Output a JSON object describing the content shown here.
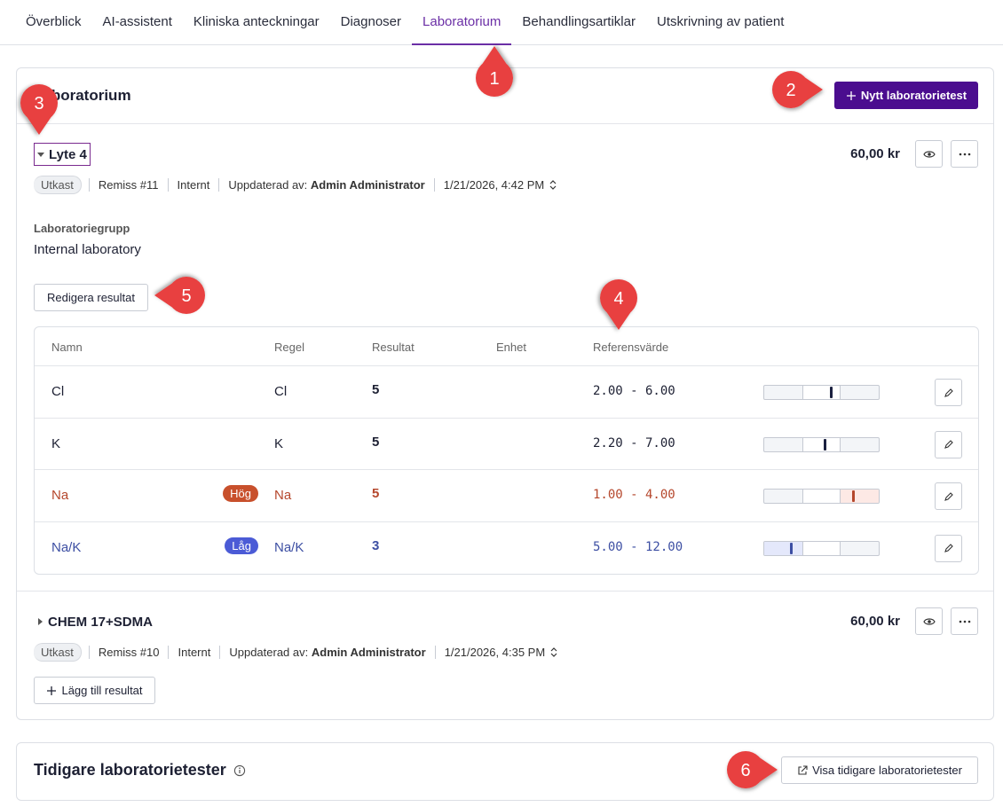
{
  "tabs": [
    "Överblick",
    "AI-assistent",
    "Kliniska anteckningar",
    "Diagnoser",
    "Laboratorium",
    "Behandlingsartiklar",
    "Utskrivning av patient"
  ],
  "panel": {
    "title": "Laboratorium",
    "new_button": "Nytt laboratorietest"
  },
  "tests": [
    {
      "name": "Lyte 4",
      "price": "60,00 kr",
      "status": "Utkast",
      "remiss": "Remiss #11",
      "source": "Internt",
      "updated_label": "Uppdaterad av:",
      "updated_by": "Admin Administrator",
      "date": "1/21/2026, 4:42 PM",
      "group_label": "Laboratoriegrupp",
      "group": "Internal laboratory",
      "action_button": "Redigera resultat",
      "table": {
        "headers": [
          "Namn",
          "Regel",
          "Resultat",
          "Enhet",
          "Referensvärde"
        ],
        "rows": [
          {
            "name": "Cl",
            "rule": "Cl",
            "result": 5,
            "reference": "2.00 - 6.00"
          },
          {
            "name": "K",
            "rule": "K",
            "result": 5,
            "reference": "2.20 - 7.00"
          },
          {
            "name": "Na",
            "flag": "Hög",
            "rule": "Na",
            "result": 5,
            "reference": "1.00 - 4.00"
          },
          {
            "name": "Na/K",
            "flag": "Låg",
            "rule": "Na/K",
            "result": 3,
            "reference": "5.00 - 12.00"
          }
        ]
      }
    },
    {
      "name": "CHEM 17+SDMA",
      "price": "60,00 kr",
      "status": "Utkast",
      "remiss": "Remiss #10",
      "source": "Internt",
      "updated_label": "Uppdaterad av:",
      "updated_by": "Admin Administrator",
      "date": "1/21/2026, 4:35 PM",
      "action_button": "Lägg till resultat"
    }
  ],
  "history": {
    "title": "Tidigare laboratorietester",
    "button": "Visa tidigare laboratorietester"
  },
  "callouts": [
    1,
    2,
    3,
    4,
    5,
    6
  ]
}
